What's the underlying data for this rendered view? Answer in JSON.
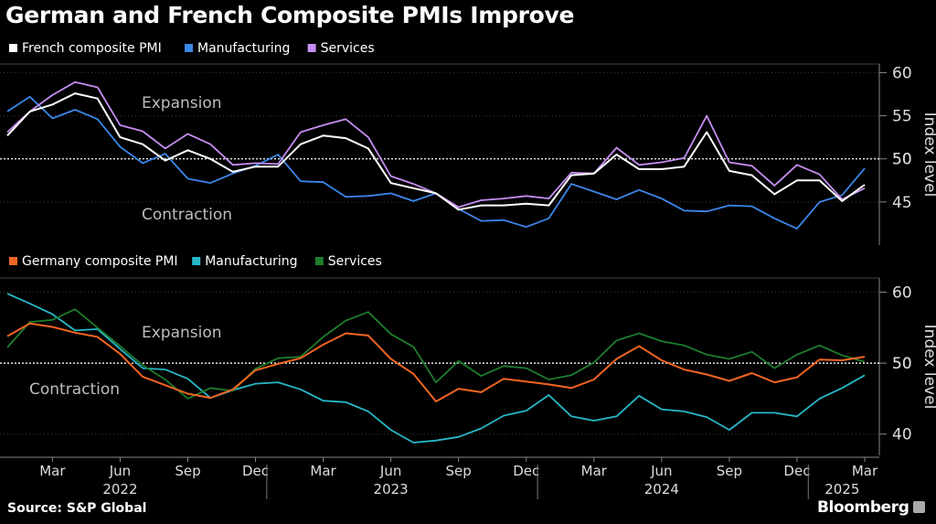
{
  "title": "German and French Composite PMIs Improve",
  "source": "Source: S&P Global",
  "brand": "Bloomberg",
  "colors": {
    "french_composite": "#ffffff",
    "french_manufacturing": "#3b86e8",
    "french_services": "#c58df0",
    "germany_composite": "#f26522",
    "germany_manufacturing": "#27b8c8",
    "germany_services": "#1e7d2c"
  },
  "x_axis": {
    "ticks": [
      {
        "label": "Mar",
        "month": 2
      },
      {
        "label": "Jun",
        "month": 5
      },
      {
        "label": "Sep",
        "month": 8
      },
      {
        "label": "Dec",
        "month": 11
      },
      {
        "label": "Mar",
        "month": 14
      },
      {
        "label": "Jun",
        "month": 17
      },
      {
        "label": "Sep",
        "month": 20
      },
      {
        "label": "Dec",
        "month": 23
      },
      {
        "label": "Mar",
        "month": 26
      },
      {
        "label": "Jun",
        "month": 29
      },
      {
        "label": "Sep",
        "month": 32
      },
      {
        "label": "Dec",
        "month": 35
      },
      {
        "label": "Mar",
        "month": 38
      }
    ],
    "years": [
      {
        "label": "2022",
        "month": 5
      },
      {
        "label": "2023",
        "month": 17
      },
      {
        "label": "2024",
        "month": 29
      },
      {
        "label": "2025",
        "month": 37
      }
    ],
    "year_separators": [
      11.5,
      23.5,
      35.5
    ]
  },
  "chart_data": [
    {
      "type": "line",
      "title": "French composite PMI",
      "ylabel": "Index level",
      "ylim": [
        40,
        61
      ],
      "yticks": [
        45,
        50,
        55,
        60
      ],
      "reference_line": 50,
      "annotations": {
        "upper": "Expansion",
        "lower": "Contraction"
      },
      "months_start": "2022-01",
      "series": [
        {
          "name": "French composite PMI",
          "color_key": "french_composite",
          "values": [
            52.7,
            55.5,
            56.3,
            57.6,
            57.0,
            52.5,
            51.7,
            49.8,
            51.0,
            50.0,
            48.5,
            49.1,
            49.1,
            51.7,
            52.7,
            52.4,
            51.2,
            47.2,
            46.6,
            46.0,
            44.1,
            44.6,
            44.6,
            44.8,
            44.6,
            48.1,
            48.3,
            50.5,
            48.8,
            48.8,
            49.1,
            53.1,
            48.6,
            48.1,
            45.9,
            47.5,
            47.5,
            45.1,
            47.0
          ]
        },
        {
          "name": "Manufacturing",
          "color_key": "french_manufacturing",
          "values": [
            55.5,
            57.2,
            54.7,
            55.7,
            54.6,
            51.4,
            49.5,
            50.6,
            47.7,
            47.2,
            48.3,
            49.2,
            50.5,
            47.4,
            47.3,
            45.6,
            45.7,
            46.0,
            45.1,
            46.0,
            44.2,
            42.8,
            42.9,
            42.1,
            43.1,
            47.1,
            46.2,
            45.3,
            46.4,
            45.4,
            44.0,
            43.9,
            44.6,
            44.5,
            43.1,
            41.9,
            45.0,
            45.8,
            48.9
          ]
        },
        {
          "name": "Services",
          "color_key": "french_services",
          "values": [
            53.1,
            55.5,
            57.4,
            58.9,
            58.3,
            53.9,
            53.2,
            51.2,
            52.9,
            51.7,
            49.3,
            49.5,
            49.4,
            53.1,
            53.9,
            54.6,
            52.5,
            48.0,
            47.1,
            46.0,
            44.4,
            45.2,
            45.4,
            45.7,
            45.4,
            48.4,
            48.3,
            51.3,
            49.3,
            49.6,
            50.1,
            55.0,
            49.6,
            49.2,
            46.9,
            49.3,
            48.2,
            45.3,
            46.6
          ]
        }
      ]
    },
    {
      "type": "line",
      "title": "Germany composite PMI",
      "ylabel": "Index level",
      "ylim": [
        37,
        62
      ],
      "yticks": [
        40,
        50,
        60
      ],
      "reference_line": 50,
      "annotations": {
        "upper": "Expansion",
        "lower": "Contraction"
      },
      "months_start": "2022-01",
      "series": [
        {
          "name": "Germany composite PMI",
          "color_key": "germany_composite",
          "values": [
            53.8,
            55.6,
            55.1,
            54.3,
            53.7,
            51.3,
            48.1,
            46.9,
            45.7,
            45.1,
            46.3,
            49.0,
            49.9,
            50.7,
            52.6,
            54.2,
            53.9,
            50.6,
            48.5,
            44.6,
            46.4,
            45.9,
            47.8,
            47.4,
            47.0,
            46.5,
            47.7,
            50.6,
            52.4,
            50.4,
            49.1,
            48.4,
            47.5,
            48.6,
            47.3,
            48.0,
            50.5,
            50.4,
            50.9
          ]
        },
        {
          "name": "Manufacturing",
          "color_key": "germany_manufacturing",
          "values": [
            59.8,
            58.4,
            56.9,
            54.6,
            54.8,
            52.0,
            49.3,
            49.1,
            47.8,
            45.1,
            46.2,
            47.1,
            47.3,
            46.3,
            44.7,
            44.5,
            43.2,
            40.6,
            38.8,
            39.1,
            39.6,
            40.8,
            42.6,
            43.3,
            45.5,
            42.5,
            41.9,
            42.5,
            45.4,
            43.5,
            43.2,
            42.4,
            40.6,
            43.0,
            43.0,
            42.5,
            45.0,
            46.5,
            48.3
          ]
        },
        {
          "name": "Services",
          "color_key": "germany_services",
          "values": [
            52.2,
            55.8,
            56.1,
            57.6,
            55.0,
            52.4,
            49.7,
            47.7,
            45.0,
            46.5,
            46.1,
            49.2,
            50.7,
            50.9,
            53.7,
            56.0,
            57.2,
            54.1,
            52.3,
            47.3,
            50.3,
            48.2,
            49.6,
            49.3,
            47.7,
            48.3,
            50.1,
            53.2,
            54.2,
            53.1,
            52.5,
            51.2,
            50.6,
            51.6,
            49.3,
            51.2,
            52.5,
            51.1,
            50.2
          ]
        }
      ]
    }
  ]
}
